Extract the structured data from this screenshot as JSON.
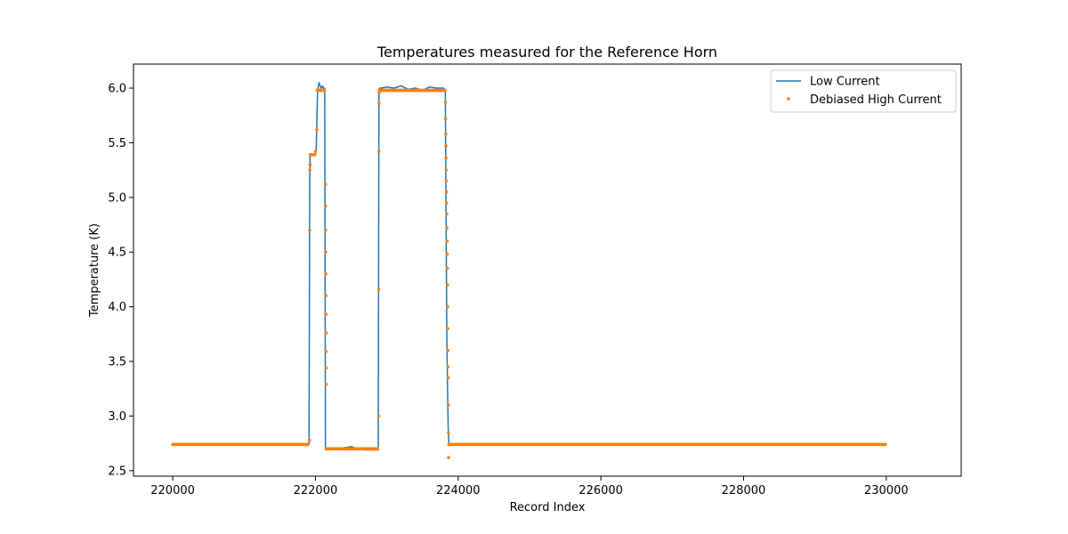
{
  "chart_data": {
    "type": "line",
    "title": "Temperatures measured for the Reference Horn",
    "xlabel": "Record Index",
    "ylabel": "Temperature (K)",
    "xlim": [
      219450,
      231050
    ],
    "ylim": [
      2.45,
      6.22
    ],
    "x_ticks": [
      220000,
      222000,
      224000,
      226000,
      228000,
      230000
    ],
    "x_tick_labels": [
      "220000",
      "222000",
      "224000",
      "226000",
      "228000",
      "230000"
    ],
    "y_ticks": [
      2.5,
      3.0,
      3.5,
      4.0,
      4.5,
      5.0,
      5.5,
      6.0
    ],
    "y_tick_labels": [
      "2.5",
      "3.0",
      "3.5",
      "4.0",
      "4.5",
      "5.0",
      "5.5",
      "6.0"
    ],
    "grid": false,
    "legend_position": "upper right",
    "series": [
      {
        "name": "Low Current",
        "kind": "line",
        "color": "#1f77b4",
        "x": [
          220000,
          221910,
          221920,
          221925,
          221930,
          221940,
          221960,
          221980,
          222000,
          222010,
          222030,
          222050,
          222080,
          222100,
          222120,
          222130,
          222140,
          222160,
          222200,
          222300,
          222400,
          222500,
          222600,
          222700,
          222800,
          222880,
          222890,
          222900,
          222920,
          223000,
          223100,
          223200,
          223300,
          223400,
          223500,
          223600,
          223700,
          223800,
          223820,
          223840,
          223850,
          223860,
          223870,
          223900,
          224000,
          225000,
          226000,
          227000,
          228000,
          229000,
          230000
        ],
        "y": [
          2.74,
          2.74,
          5.2,
          5.38,
          5.4,
          5.4,
          5.4,
          5.39,
          5.4,
          5.42,
          5.98,
          6.05,
          6.0,
          6.02,
          5.99,
          6.0,
          2.7,
          2.69,
          2.7,
          2.7,
          2.71,
          2.72,
          2.7,
          2.69,
          2.69,
          2.69,
          5.98,
          6.0,
          6.0,
          6.01,
          6.0,
          6.02,
          5.99,
          6.0,
          5.98,
          6.01,
          6.0,
          6.0,
          5.97,
          3.8,
          3.3,
          2.9,
          2.74,
          2.74,
          2.74,
          2.74,
          2.74,
          2.74,
          2.74,
          2.74,
          2.74
        ]
      },
      {
        "name": "Debiased High Current",
        "kind": "scatter",
        "color": "#ff7f0e",
        "x": [
          221915,
          221918,
          221921,
          221924,
          222000,
          222020,
          222025,
          222140,
          222141,
          222142,
          222143,
          222144,
          222145,
          222146,
          222147,
          222148,
          222149,
          222150,
          222151,
          222886,
          222888,
          222890,
          222892,
          222894,
          223822,
          223824,
          223826,
          223828,
          223830,
          223832,
          223834,
          223836,
          223838,
          223840,
          223842,
          223844,
          223846,
          223848,
          223850,
          223852,
          223854,
          223856,
          223858,
          223860,
          223862,
          223864,
          223866
        ],
        "y": [
          2.78,
          4.7,
          5.25,
          5.3,
          5.42,
          5.62,
          5.98,
          5.12,
          4.92,
          4.7,
          4.5,
          4.3,
          4.1,
          3.93,
          3.76,
          3.59,
          3.44,
          3.29,
          2.7,
          3.0,
          4.16,
          5.42,
          5.86,
          5.96,
          5.87,
          5.72,
          5.58,
          5.47,
          5.36,
          5.25,
          5.15,
          5.05,
          4.95,
          4.85,
          4.72,
          4.6,
          4.48,
          4.35,
          4.2,
          4.0,
          3.8,
          3.6,
          3.45,
          3.35,
          3.1,
          2.85,
          2.62
        ],
        "plateaus": [
          {
            "x_start": 220000,
            "x_end": 221905,
            "y": 2.74
          },
          {
            "x_start": 221925,
            "x_end": 221995,
            "y": 5.39
          },
          {
            "x_start": 222030,
            "x_end": 222135,
            "y": 5.98
          },
          {
            "x_start": 222155,
            "x_end": 222880,
            "y": 2.7
          },
          {
            "x_start": 222895,
            "x_end": 223820,
            "y": 5.98
          },
          {
            "x_start": 223870,
            "x_end": 230000,
            "y": 2.74
          }
        ]
      }
    ]
  }
}
